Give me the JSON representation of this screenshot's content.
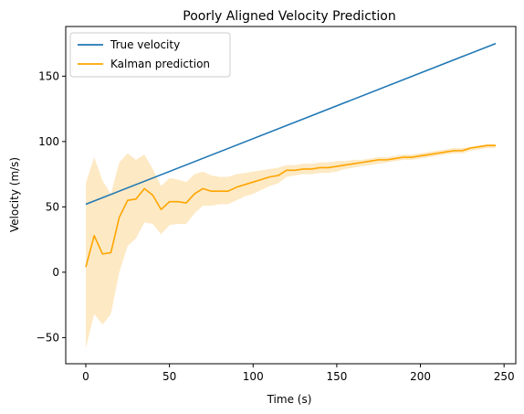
{
  "chart_data": {
    "type": "line",
    "title": "Poorly Aligned Velocity Prediction",
    "xlabel": "Time (s)",
    "ylabel": "Velocity (m/s)",
    "xlim": [
      -12,
      257
    ],
    "ylim": [
      -70,
      188
    ],
    "xticks": [
      0,
      50,
      100,
      150,
      200,
      250
    ],
    "xtick_labels": [
      "0",
      "50",
      "100",
      "150",
      "200",
      "250"
    ],
    "yticks": [
      -50,
      0,
      50,
      100,
      150
    ],
    "ytick_labels": [
      "−50",
      "0",
      "50",
      "100",
      "150"
    ],
    "grid": false,
    "legend_position": "top-left",
    "series": [
      {
        "name": "True velocity",
        "color": "#1f77b4",
        "x": [
          0,
          245
        ],
        "y": [
          52,
          175
        ]
      },
      {
        "name": "Kalman prediction",
        "color": "#ffa500",
        "x": [
          0,
          5,
          10,
          15,
          20,
          25,
          30,
          35,
          40,
          45,
          50,
          55,
          60,
          65,
          70,
          75,
          80,
          85,
          90,
          95,
          100,
          105,
          110,
          115,
          120,
          125,
          130,
          135,
          140,
          145,
          150,
          155,
          160,
          165,
          170,
          175,
          180,
          185,
          190,
          195,
          200,
          205,
          210,
          215,
          220,
          225,
          230,
          235,
          240,
          245
        ],
        "y": [
          4,
          28,
          14,
          15,
          42,
          55,
          56,
          64,
          59,
          48,
          54,
          54,
          53,
          60,
          64,
          62,
          62,
          62,
          65,
          67,
          69,
          71,
          73,
          74,
          78,
          78,
          79,
          79,
          80,
          80,
          81,
          82,
          83,
          84,
          85,
          86,
          86,
          87,
          88,
          88,
          89,
          90,
          91,
          92,
          93,
          93,
          95,
          96,
          97,
          97
        ],
        "band_upper": [
          68,
          88,
          70,
          60,
          84,
          91,
          86,
          90,
          79,
          66,
          72,
          71,
          69,
          75,
          77,
          74,
          73,
          73,
          75,
          76,
          77,
          78,
          79,
          80,
          82,
          82,
          83,
          83,
          84,
          84,
          85,
          85,
          86,
          86,
          87,
          88,
          88,
          89,
          90,
          90,
          91,
          92,
          93,
          94,
          95,
          95,
          96,
          97,
          98,
          98
        ],
        "band_lower": [
          -58,
          -32,
          -40,
          -32,
          0,
          20,
          26,
          38,
          37,
          29,
          36,
          37,
          37,
          45,
          51,
          51,
          52,
          52,
          55,
          58,
          60,
          63,
          66,
          68,
          73,
          74,
          75,
          75,
          76,
          76,
          77,
          79,
          80,
          81,
          82,
          83,
          84,
          85,
          86,
          86,
          87,
          88,
          89,
          90,
          91,
          91,
          93,
          94,
          95,
          95
        ],
        "band_color": "#fde9c4"
      }
    ]
  }
}
